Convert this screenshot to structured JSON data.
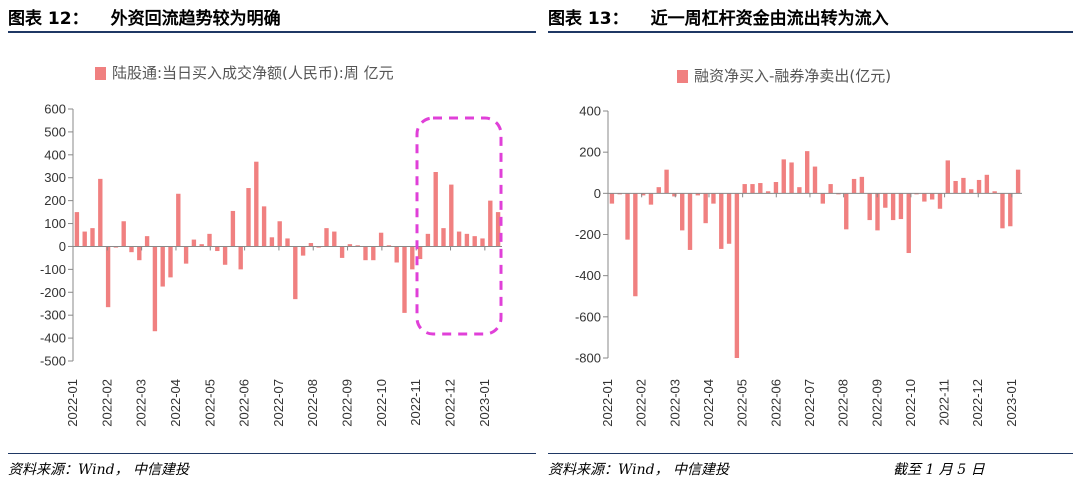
{
  "left": {
    "title_num": "图表 12：",
    "title_text": "外资回流趋势较为明确",
    "source": "资料来源：Wind，  中信建投",
    "chart_data": {
      "type": "bar",
      "title": "",
      "legend": "陆股通:当日买入成交净额(人民币):周  亿元",
      "legend_position": "top",
      "xlabel": "",
      "ylabel": "",
      "ylim": [
        -500,
        600
      ],
      "yticks": [
        600,
        500,
        400,
        300,
        200,
        100,
        0,
        -100,
        -200,
        -300,
        -400,
        -500
      ],
      "xlim": [
        0,
        12.5
      ],
      "xticks": [
        "2022-01",
        "2022-02",
        "2022-03",
        "2022-04",
        "2022-05",
        "2022-06",
        "2022-07",
        "2022-08",
        "2022-09",
        "2022-10",
        "2022-11",
        "2022-12",
        "2023-01"
      ],
      "bar_color": "#f08080",
      "values": [
        150,
        65,
        80,
        295,
        -265,
        -5,
        110,
        -25,
        -60,
        45,
        -370,
        -175,
        -135,
        230,
        -75,
        30,
        10,
        55,
        -20,
        -80,
        155,
        -100,
        255,
        370,
        175,
        40,
        110,
        35,
        -230,
        -40,
        15,
        -5,
        80,
        65,
        -50,
        10,
        5,
        -60,
        -60,
        60,
        5,
        -70,
        -290,
        -100,
        -55,
        55,
        325,
        80,
        270,
        65,
        55,
        45,
        35,
        200,
        150
      ],
      "annotation": "dashed-highlight-box"
    }
  },
  "right": {
    "title_num": "图表 13：",
    "title_text": "近一周杠杆资金由流出转为流入",
    "source": "资料来源：Wind，  中信建投",
    "date_note": "截至 1 月 5 日",
    "chart_data": {
      "type": "bar",
      "title": "",
      "legend": "融资净买入-融券净卖出(亿元)",
      "legend_position": "top",
      "xlabel": "",
      "ylabel": "",
      "ylim": [
        -800,
        400
      ],
      "yticks": [
        400,
        200,
        0,
        -200,
        -400,
        -600,
        -800
      ],
      "xlim": [
        0,
        12.3
      ],
      "xticks": [
        "2022-01",
        "2022-02",
        "2022-03",
        "2022-04",
        "2022-05",
        "2022-06",
        "2022-07",
        "2022-08",
        "2022-09",
        "2022-10",
        "2022-11",
        "2022-12",
        "2023-01"
      ],
      "bar_color": "#f08080",
      "values": [
        -50,
        -5,
        -225,
        -500,
        -10,
        -55,
        30,
        115,
        -15,
        -180,
        -275,
        -10,
        -145,
        -50,
        -270,
        -245,
        -800,
        45,
        45,
        50,
        10,
        55,
        165,
        150,
        30,
        205,
        130,
        -50,
        45,
        -5,
        -175,
        70,
        80,
        -130,
        -180,
        -70,
        -130,
        -125,
        -290,
        -5,
        -40,
        -30,
        -75,
        160,
        60,
        75,
        20,
        65,
        90,
        10,
        -170,
        -160,
        115
      ]
    }
  }
}
